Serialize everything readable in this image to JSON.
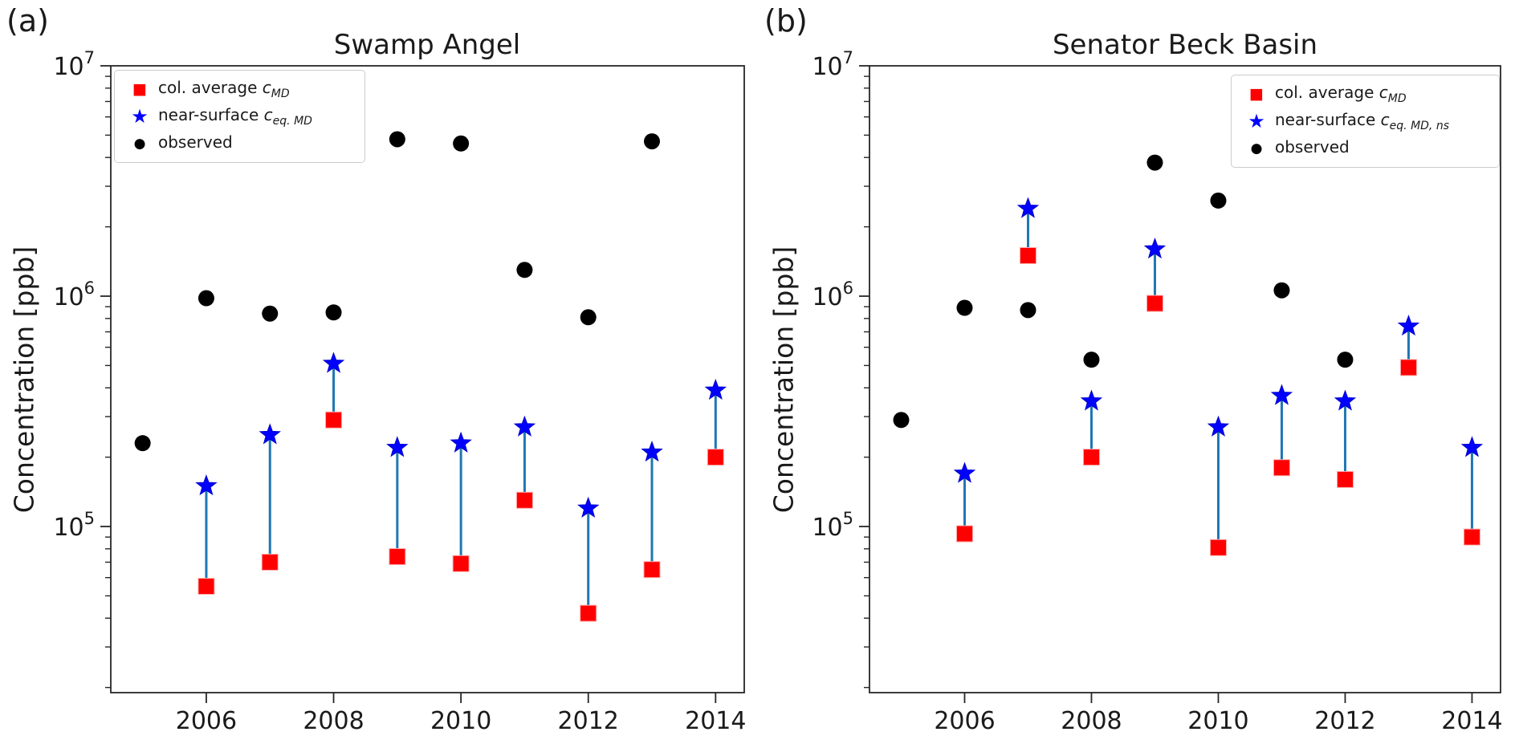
{
  "figure": {
    "ylabel": "Concentration [ppb]",
    "panels": [
      {
        "letter": "(a)",
        "title": "Swamp Angel",
        "ylabel": "Concentration [ppb]",
        "legend": [
          {
            "marker": "square",
            "prefix": "col. average ",
            "var": "c",
            "sub": "MD"
          },
          {
            "marker": "star",
            "prefix": "near-surface ",
            "var": "c",
            "sub": "eq. MD"
          },
          {
            "marker": "circle",
            "prefix": "observed",
            "var": "",
            "sub": ""
          }
        ]
      },
      {
        "letter": "(b)",
        "title": "Senator Beck Basin",
        "ylabel": "Concentration [ppb]",
        "legend": [
          {
            "marker": "square",
            "prefix": "col. average ",
            "var": "c",
            "sub": "MD"
          },
          {
            "marker": "star",
            "prefix": "near-surface ",
            "var": "c",
            "sub": "eq. MD, ns"
          },
          {
            "marker": "circle",
            "prefix": "observed",
            "var": "",
            "sub": ""
          }
        ]
      }
    ]
  },
  "chart_data": [
    {
      "type": "scatter",
      "title": "Swamp Angel",
      "xlabel": "",
      "ylabel": "Concentration [ppb]",
      "yscale": "log",
      "xlim": [
        2004.5,
        2014.45
      ],
      "ylim": [
        19000,
        10000000
      ],
      "xticks": [
        2006,
        2008,
        2010,
        2012,
        2014
      ],
      "ytick_exponents": [
        5,
        6,
        7
      ],
      "grid": false,
      "legend_position": "upper left",
      "connector_color": "#1f77b4",
      "series": [
        {
          "name": "col. average c_MD",
          "marker": "square",
          "color": "#ff0000",
          "points": [
            [
              2006,
              55000
            ],
            [
              2007,
              70000
            ],
            [
              2008,
              290000
            ],
            [
              2009,
              74000
            ],
            [
              2010,
              69000
            ],
            [
              2011,
              130000
            ],
            [
              2012,
              42000
            ],
            [
              2013,
              65000
            ],
            [
              2014,
              200000
            ]
          ]
        },
        {
          "name": "near-surface c_eq.MD",
          "marker": "star",
          "color": "#0000ff",
          "points": [
            [
              2006,
              150000
            ],
            [
              2007,
              250000
            ],
            [
              2008,
              510000
            ],
            [
              2009,
              220000
            ],
            [
              2010,
              230000
            ],
            [
              2011,
              270000
            ],
            [
              2012,
              120000
            ],
            [
              2013,
              210000
            ],
            [
              2014,
              390000
            ]
          ]
        },
        {
          "name": "observed",
          "marker": "circle",
          "color": "#000000",
          "points": [
            [
              2005,
              230000
            ],
            [
              2006,
              980000
            ],
            [
              2007,
              840000
            ],
            [
              2008,
              850000
            ],
            [
              2009,
              4800000
            ],
            [
              2010,
              4600000
            ],
            [
              2011,
              1300000
            ],
            [
              2012,
              810000
            ],
            [
              2013,
              4700000
            ]
          ]
        }
      ]
    },
    {
      "type": "scatter",
      "title": "Senator Beck Basin",
      "xlabel": "",
      "ylabel": "Concentration [ppb]",
      "yscale": "log",
      "xlim": [
        2004.5,
        2014.45
      ],
      "ylim": [
        19000,
        10000000
      ],
      "xticks": [
        2006,
        2008,
        2010,
        2012,
        2014
      ],
      "ytick_exponents": [
        5,
        6,
        7
      ],
      "grid": false,
      "legend_position": "upper right",
      "connector_color": "#1f77b4",
      "series": [
        {
          "name": "col. average c_MD",
          "marker": "square",
          "color": "#ff0000",
          "points": [
            [
              2006,
              93000
            ],
            [
              2007,
              1500000
            ],
            [
              2008,
              200000
            ],
            [
              2009,
              930000
            ],
            [
              2010,
              81000
            ],
            [
              2011,
              180000
            ],
            [
              2012,
              160000
            ],
            [
              2013,
              490000
            ],
            [
              2014,
              90000
            ]
          ]
        },
        {
          "name": "near-surface c_eq.MD,ns",
          "marker": "star",
          "color": "#0000ff",
          "points": [
            [
              2006,
              170000
            ],
            [
              2007,
              2400000
            ],
            [
              2008,
              350000
            ],
            [
              2009,
              1600000
            ],
            [
              2010,
              270000
            ],
            [
              2011,
              370000
            ],
            [
              2012,
              350000
            ],
            [
              2013,
              740000
            ],
            [
              2014,
              220000
            ]
          ]
        },
        {
          "name": "observed",
          "marker": "circle",
          "color": "#000000",
          "points": [
            [
              2005,
              290000
            ],
            [
              2006,
              890000
            ],
            [
              2007,
              870000
            ],
            [
              2008,
              530000
            ],
            [
              2009,
              3800000
            ],
            [
              2010,
              2600000
            ],
            [
              2011,
              1060000
            ],
            [
              2012,
              530000
            ]
          ]
        }
      ]
    }
  ]
}
